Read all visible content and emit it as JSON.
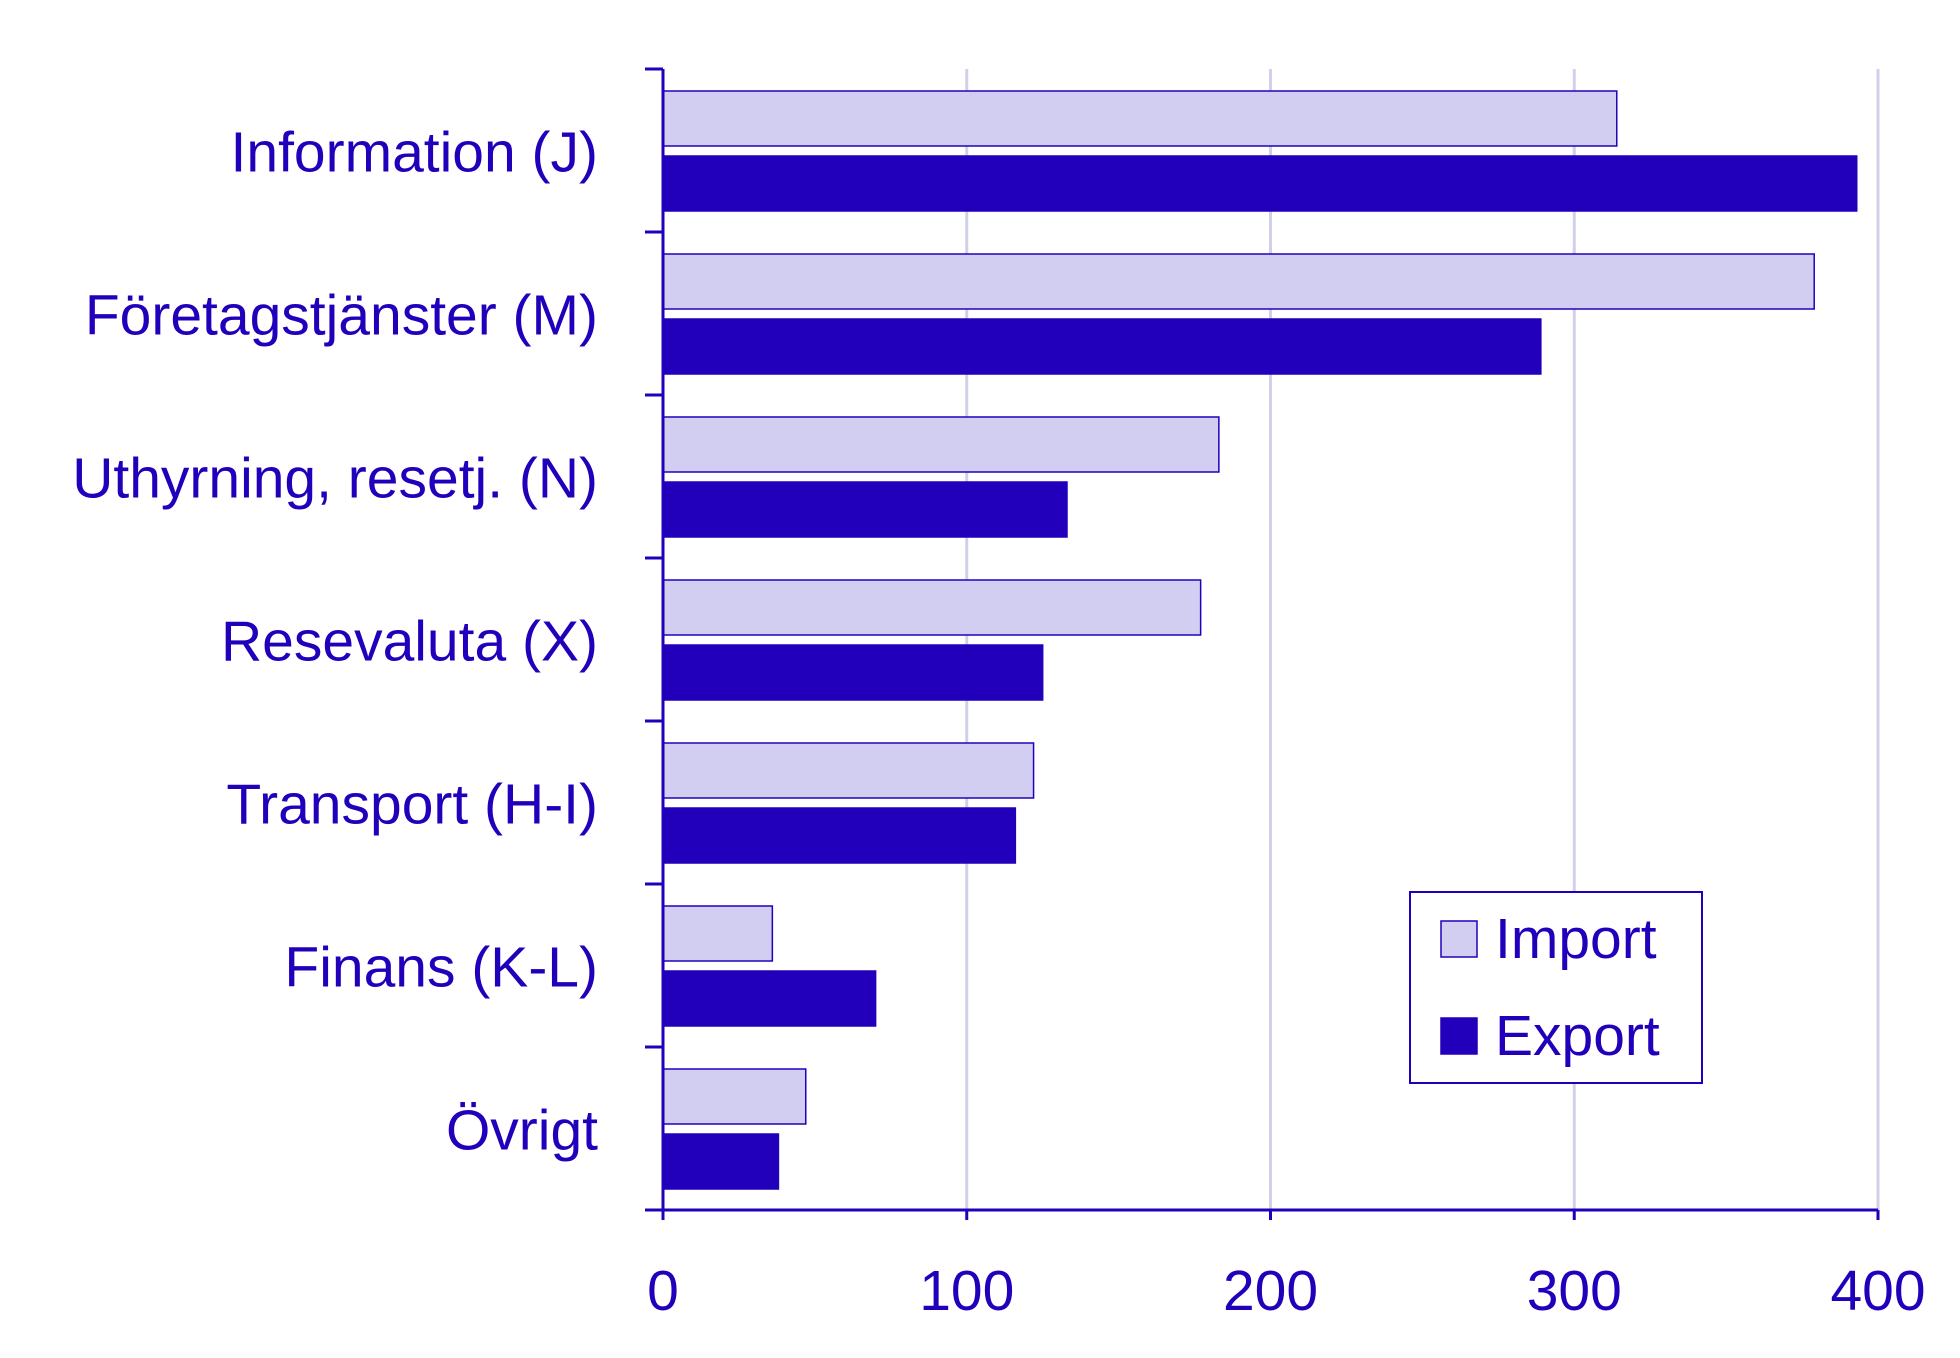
{
  "chart_data": {
    "type": "hbar",
    "categories": [
      "Information (J)",
      "Företagstjänster (M)",
      "Uthyrning, resetj. (N)",
      "Resevaluta (X)",
      "Transport (H-I)",
      "Finans (K-L)",
      "Övrigt"
    ],
    "series": [
      {
        "name": "Import",
        "color": "#d2cef2",
        "values": [
          314,
          379,
          183,
          177,
          122,
          36,
          47
        ]
      },
      {
        "name": "Export",
        "color": "#2200bb",
        "values": [
          393,
          289,
          133,
          125,
          116,
          70,
          38
        ]
      }
    ],
    "xlim": [
      0,
      400
    ],
    "xticks": [
      0,
      100,
      200,
      300,
      400
    ],
    "grid": true,
    "legend": "lower right"
  }
}
